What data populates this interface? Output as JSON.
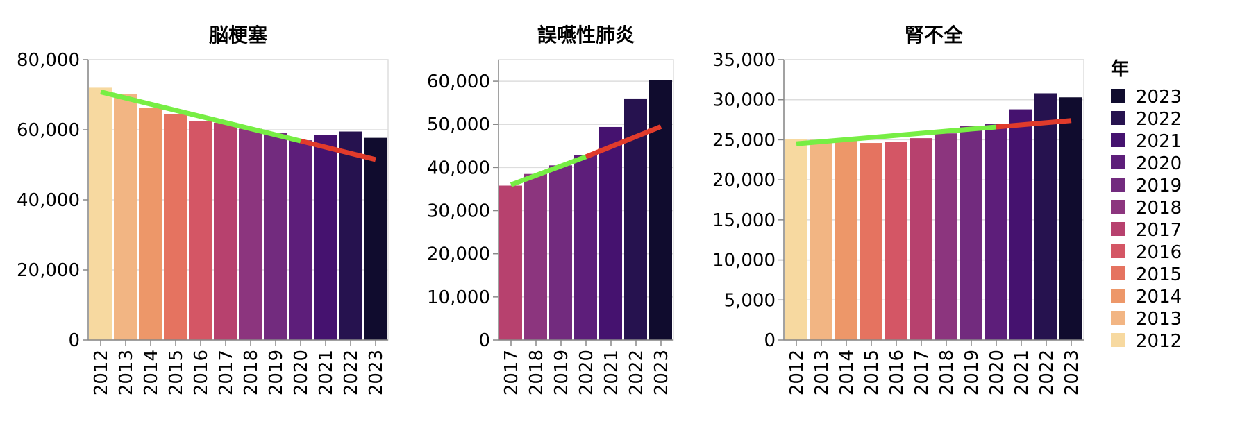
{
  "chart_data": [
    {
      "type": "bar",
      "title": "脳梗塞",
      "categories": [
        "2012",
        "2013",
        "2014",
        "2015",
        "2016",
        "2017",
        "2018",
        "2019",
        "2020",
        "2021",
        "2022",
        "2023"
      ],
      "values": [
        72000,
        70200,
        66200,
        64500,
        62500,
        62000,
        60300,
        59200,
        57000,
        58600,
        59500,
        57700
      ],
      "ylim": [
        0,
        80000
      ],
      "yticks": [
        0,
        20000,
        40000,
        60000,
        80000
      ],
      "ytick_labels": [
        "0",
        "20,000",
        "40,000",
        "60,000",
        "80,000"
      ],
      "trend_fit": {
        "color": "#77ee44",
        "from": "2012",
        "to": "2020",
        "y_start": 70800,
        "y_end": 56800
      },
      "trend_forecast": {
        "color": "#e03b2b",
        "from": "2020",
        "to": "2023",
        "y_start": 56800,
        "y_end": 51500
      },
      "grid": true
    },
    {
      "type": "bar",
      "title": "誤嚥性肺炎",
      "categories": [
        "2017",
        "2018",
        "2019",
        "2020",
        "2021",
        "2022",
        "2023"
      ],
      "values": [
        35800,
        38500,
        40500,
        42800,
        49400,
        56000,
        60200
      ],
      "ylim": [
        0,
        65000
      ],
      "yticks": [
        0,
        10000,
        20000,
        30000,
        40000,
        50000,
        60000
      ],
      "ytick_labels": [
        "0",
        "10,000",
        "20,000",
        "30,000",
        "40,000",
        "50,000",
        "60,000"
      ],
      "trend_fit": {
        "color": "#77ee44",
        "from": "2017",
        "to": "2020",
        "y_start": 36000,
        "y_end": 42500
      },
      "trend_forecast": {
        "color": "#e03b2b",
        "from": "2020",
        "to": "2023",
        "y_start": 42500,
        "y_end": 49500
      },
      "grid": true
    },
    {
      "type": "bar",
      "title": "腎不全",
      "categories": [
        "2012",
        "2013",
        "2014",
        "2015",
        "2016",
        "2017",
        "2018",
        "2019",
        "2020",
        "2021",
        "2022",
        "2023"
      ],
      "values": [
        25100,
        25000,
        24900,
        24600,
        24700,
        25200,
        25800,
        26700,
        27000,
        28800,
        30800,
        30300
      ],
      "ylim": [
        0,
        35000
      ],
      "yticks": [
        0,
        5000,
        10000,
        15000,
        20000,
        25000,
        30000,
        35000
      ],
      "ytick_labels": [
        "0",
        "5,000",
        "10,000",
        "15,000",
        "20,000",
        "25,000",
        "30,000",
        "35,000"
      ],
      "trend_fit": {
        "color": "#77ee44",
        "from": "2012",
        "to": "2020",
        "y_start": 24500,
        "y_end": 26600
      },
      "trend_forecast": {
        "color": "#e03b2b",
        "from": "2020",
        "to": "2023",
        "y_start": 26600,
        "y_end": 27400
      },
      "grid": true
    }
  ],
  "legend": {
    "title": "年",
    "placement": "right",
    "items": [
      {
        "label": "2023",
        "color": "#100c2e"
      },
      {
        "label": "2022",
        "color": "#26124f"
      },
      {
        "label": "2021",
        "color": "#45126f"
      },
      {
        "label": "2020",
        "color": "#5d1e7a"
      },
      {
        "label": "2019",
        "color": "#722b7e"
      },
      {
        "label": "2018",
        "color": "#8c357e"
      },
      {
        "label": "2017",
        "color": "#b7416e"
      },
      {
        "label": "2016",
        "color": "#d45665"
      },
      {
        "label": "2015",
        "color": "#e57360"
      },
      {
        "label": "2014",
        "color": "#ed9769"
      },
      {
        "label": "2013",
        "color": "#f2b583"
      },
      {
        "label": "2012",
        "color": "#f7d9a0"
      }
    ]
  }
}
